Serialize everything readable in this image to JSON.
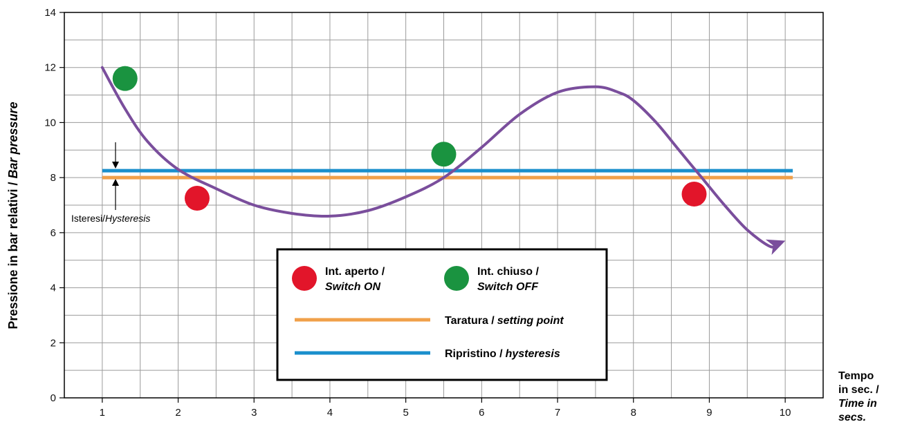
{
  "chart_data": {
    "type": "line",
    "ylabel_main": "Pressione in bar relativi /",
    "ylabel_ital": "Bar pressure",
    "xlabel_lines": [
      "Tempo",
      "in sec. /"
    ],
    "xlabel_ital_lines": [
      "Time in",
      "secs."
    ],
    "xlim": [
      0.5,
      10.5
    ],
    "ylim": [
      0,
      14
    ],
    "x_ticks": [
      1,
      2,
      3,
      4,
      5,
      6,
      7,
      8,
      9,
      10
    ],
    "y_ticks": [
      0,
      2,
      4,
      6,
      8,
      10,
      12,
      14
    ],
    "grid": true,
    "curve": {
      "x": [
        1.0,
        1.3,
        1.6,
        2.0,
        2.5,
        3.0,
        3.5,
        4.0,
        4.5,
        5.0,
        5.5,
        6.0,
        6.5,
        7.0,
        7.5,
        7.8,
        8.0,
        8.3,
        8.6,
        8.9,
        9.2,
        9.5,
        9.8,
        9.9
      ],
      "y": [
        12.0,
        10.5,
        9.3,
        8.3,
        7.6,
        7.0,
        6.7,
        6.6,
        6.8,
        7.3,
        8.0,
        9.1,
        10.3,
        11.1,
        11.3,
        11.1,
        10.8,
        10.0,
        9.0,
        8.0,
        7.0,
        6.1,
        5.5,
        5.6
      ],
      "color": "#7a4e9c"
    },
    "setting_line": {
      "y": 8.0,
      "color": "#f0a04a"
    },
    "reset_line": {
      "y": 8.25,
      "color": "#1a8fcc"
    },
    "switch_on_points": [
      {
        "x": 2.25,
        "y": 7.25
      },
      {
        "x": 8.8,
        "y": 7.4
      }
    ],
    "switch_off_points": [
      {
        "x": 1.3,
        "y": 11.6
      },
      {
        "x": 5.5,
        "y": 8.85
      }
    ],
    "on_color": "#e2152a",
    "off_color": "#1a9340",
    "hysteresis_label_main": "Isteresi/",
    "hysteresis_label_ital": "Hysteresis",
    "legend": {
      "on_label": "Int. aperto /",
      "on_label_ital": "Switch ON",
      "off_label": "Int. chiuso /",
      "off_label_ital": "Switch OFF",
      "setting_label": "Taratura /",
      "setting_label_ital": "setting point",
      "reset_label": "Ripristino /",
      "reset_label_ital": "hysteresis"
    }
  }
}
